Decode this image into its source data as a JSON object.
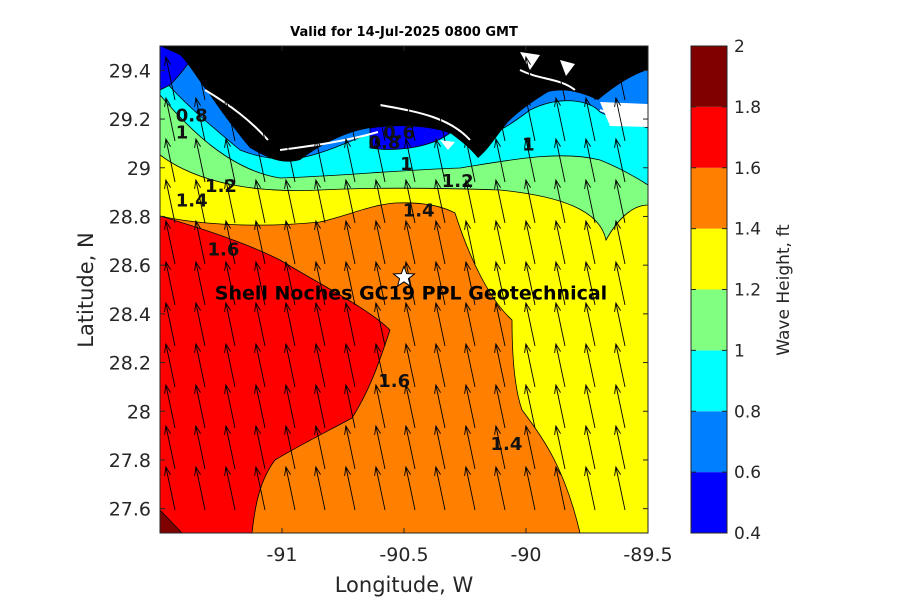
{
  "chart_data": {
    "type": "heatmap",
    "title": "Valid for 14-Jul-2025 0800 GMT",
    "xlabel": "Longitude, W",
    "ylabel": "Latitude, N",
    "xlim": [
      -91.5,
      -89.5
    ],
    "ylim": [
      27.5,
      29.5
    ],
    "xticks": [
      -91,
      -90.5,
      -90,
      -89.5
    ],
    "yticks": [
      27.6,
      27.8,
      28,
      28.2,
      28.4,
      28.6,
      28.8,
      29,
      29.2,
      29.4
    ],
    "colorbar": {
      "label": "Wave Height, ft",
      "ticks": [
        0.4,
        0.6,
        0.8,
        1,
        1.2,
        1.4,
        1.6,
        1.8,
        2
      ],
      "levels": [
        {
          "from": 0.4,
          "to": 0.6,
          "color": "#0000ff"
        },
        {
          "from": 0.6,
          "to": 0.8,
          "color": "#0080ff"
        },
        {
          "from": 0.8,
          "to": 1.0,
          "color": "#00ffff"
        },
        {
          "from": 1.0,
          "to": 1.2,
          "color": "#80ff80"
        },
        {
          "from": 1.2,
          "to": 1.4,
          "color": "#ffff00"
        },
        {
          "from": 1.4,
          "to": 1.6,
          "color": "#ff8000"
        },
        {
          "from": 1.6,
          "to": 1.8,
          "color": "#ff0000"
        },
        {
          "from": 1.8,
          "to": 2.0,
          "color": "#800000"
        }
      ]
    },
    "contour_labels": [
      {
        "text": "0.8",
        "lon": -91.37,
        "lat": 29.19
      },
      {
        "text": "1",
        "lon": -91.41,
        "lat": 29.12
      },
      {
        "text": "0.6",
        "lon": -90.52,
        "lat": 29.12
      },
      {
        "text": "0.8",
        "lon": -90.58,
        "lat": 29.08
      },
      {
        "text": "1",
        "lon": -90.49,
        "lat": 28.99
      },
      {
        "text": "1",
        "lon": -89.99,
        "lat": 29.07
      },
      {
        "text": "1.2",
        "lon": -91.25,
        "lat": 28.9
      },
      {
        "text": "1.2",
        "lon": -90.28,
        "lat": 28.92
      },
      {
        "text": "1.4",
        "lon": -91.37,
        "lat": 28.84
      },
      {
        "text": "1.4",
        "lon": -90.44,
        "lat": 28.8
      },
      {
        "text": "1.6",
        "lon": -91.24,
        "lat": 28.64
      },
      {
        "text": "1.6",
        "lon": -90.54,
        "lat": 28.1
      },
      {
        "text": "1.4",
        "lon": -90.08,
        "lat": 27.84
      }
    ],
    "site": {
      "name": "Shell Noches   GC19 PPL  Geotechnical",
      "lon": -90.5,
      "lat": 28.55
    },
    "direction_arrows": {
      "field": "wave direction",
      "heading": "north-north-west",
      "grid": "regular"
    }
  }
}
